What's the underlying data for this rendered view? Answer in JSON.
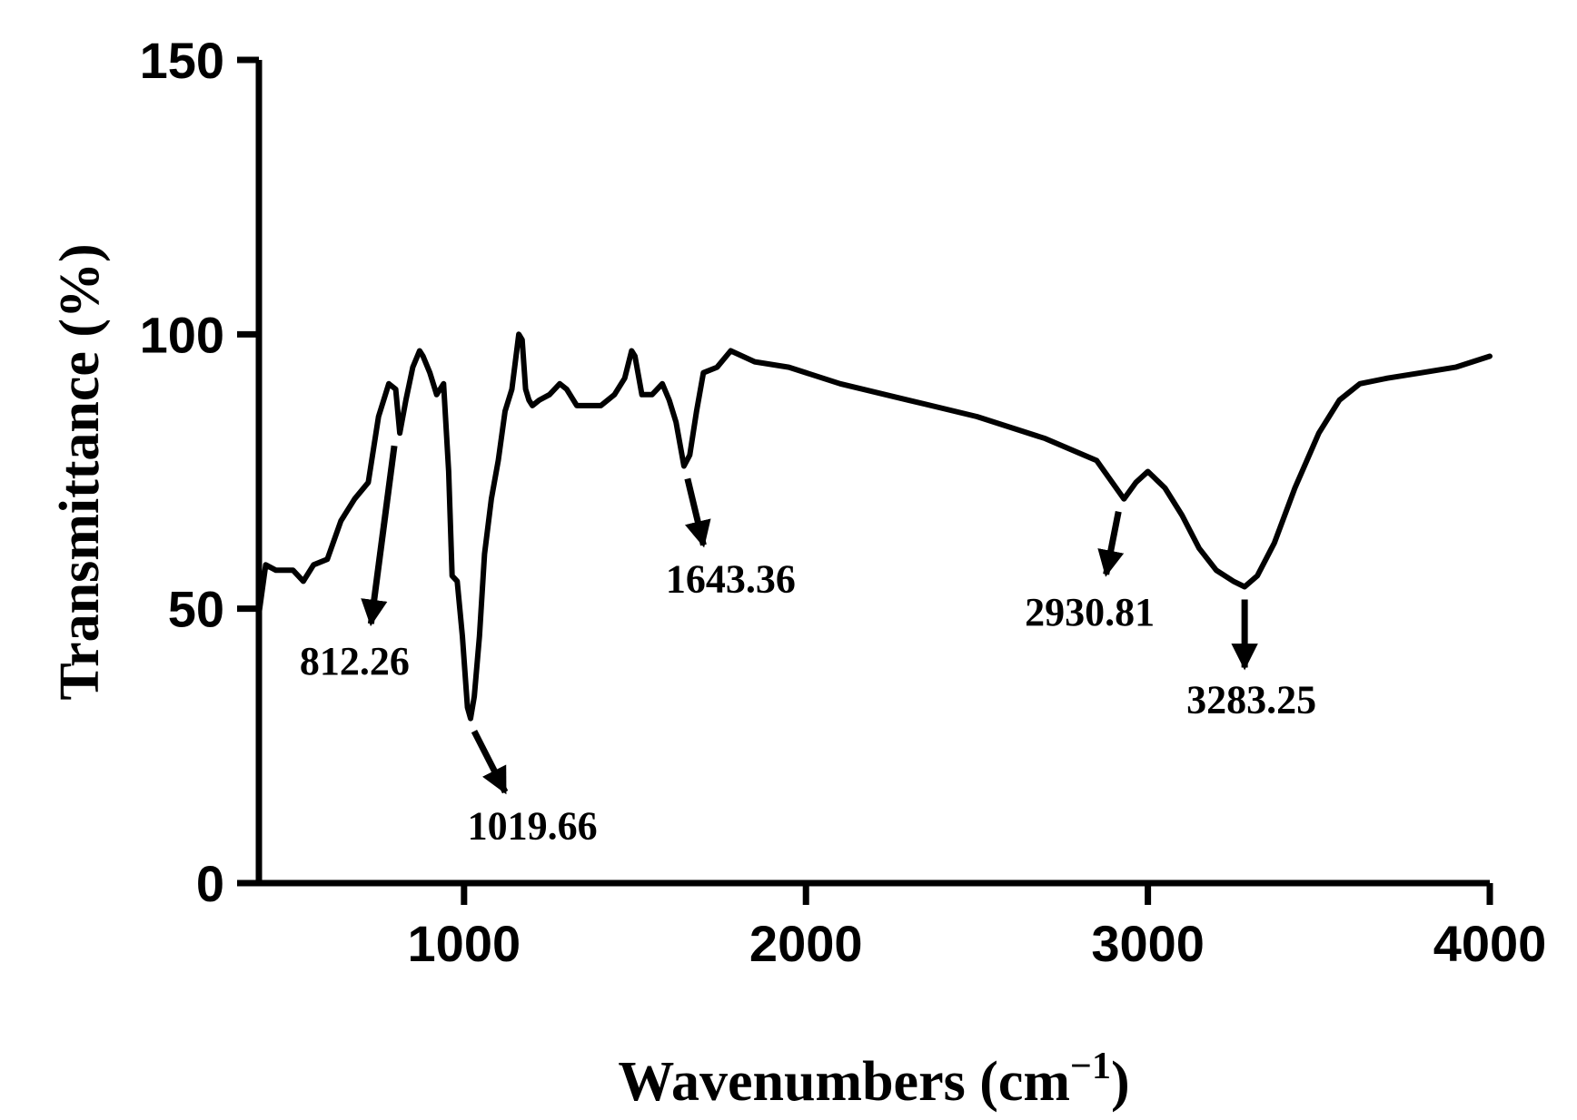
{
  "chart_data": {
    "type": "line",
    "xlabel": "Wavenumbers (cm",
    "xlabel_sup": "−1",
    "xlabel_close": ")",
    "ylabel": "Transmittance (%)",
    "xlim": [
      400,
      4000
    ],
    "ylim": [
      0,
      150
    ],
    "xticks": [
      1000,
      2000,
      3000,
      4000
    ],
    "yticks": [
      0,
      50,
      100,
      150
    ],
    "grid": false,
    "series": [
      {
        "color": "#000000",
        "x": [
          400,
          420,
          450,
          500,
          530,
          560,
          600,
          640,
          680,
          720,
          750,
          780,
          800,
          812,
          830,
          850,
          870,
          880,
          900,
          920,
          940,
          955,
          965,
          980,
          995,
          1010,
          1019,
          1030,
          1045,
          1060,
          1080,
          1100,
          1120,
          1140,
          1160,
          1170,
          1180,
          1190,
          1200,
          1220,
          1250,
          1280,
          1300,
          1330,
          1360,
          1400,
          1440,
          1470,
          1490,
          1500,
          1520,
          1550,
          1580,
          1600,
          1620,
          1643,
          1660,
          1680,
          1700,
          1740,
          1780,
          1850,
          1950,
          2100,
          2300,
          2500,
          2700,
          2850,
          2930,
          2965,
          3000,
          3050,
          3100,
          3150,
          3200,
          3250,
          3283,
          3320,
          3370,
          3430,
          3500,
          3560,
          3620,
          3700,
          3800,
          3900,
          4000
        ],
        "y": [
          49,
          58,
          57,
          57,
          55,
          58,
          59,
          66,
          70,
          73,
          85,
          91,
          90,
          82,
          88,
          94,
          97,
          96,
          93,
          89,
          91,
          75,
          56,
          55,
          45,
          32,
          30,
          34,
          45,
          60,
          70,
          77,
          86,
          90,
          100,
          99,
          90,
          88,
          87,
          88,
          89,
          91,
          90,
          87,
          87,
          87,
          89,
          92,
          97,
          96,
          89,
          89,
          91,
          88,
          84,
          76,
          78,
          86,
          93,
          94,
          97,
          95,
          94,
          91,
          88,
          85,
          81,
          77,
          70,
          73,
          75,
          72,
          67,
          61,
          57,
          55,
          54,
          56,
          62,
          72,
          82,
          88,
          91,
          92,
          93,
          94,
          96
        ]
      }
    ],
    "annotations": [
      {
        "text": "812.26",
        "x": 812,
        "y": 82,
        "label_x": 680,
        "label_y": 38,
        "arrow": "down-left"
      },
      {
        "text": "1019.66",
        "x": 1019,
        "y": 30,
        "label_x": 1200,
        "label_y": 8,
        "arrow": "down-right"
      },
      {
        "text": "1643.36",
        "x": 1643,
        "y": 76,
        "label_x": 1780,
        "label_y": 53,
        "arrow": "down-right"
      },
      {
        "text": "2930.81",
        "x": 2930,
        "y": 70,
        "label_x": 2830,
        "label_y": 47,
        "arrow": "down-left"
      },
      {
        "text": "3283.25",
        "x": 3283,
        "y": 54,
        "label_x": 3303,
        "label_y": 31,
        "arrow": "down"
      }
    ]
  }
}
